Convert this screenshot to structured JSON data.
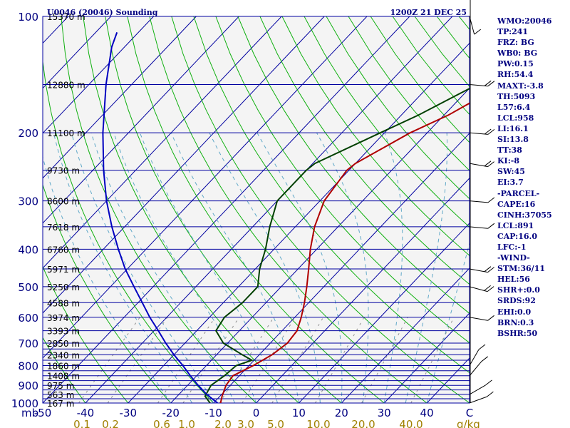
{
  "colors": {
    "isobar": "#0000a0",
    "isotherm": "#0000a0",
    "dry_adiabat": "#10b010",
    "moist_adiabat": "#60a8c8",
    "mixing_ratio": "#909090",
    "temperature": "#b00000",
    "dewpoint": "#004000",
    "parcel": "#0000c0",
    "title": "#000080",
    "axis_text": "#000080",
    "mixing_text": "#a08000"
  },
  "stats": [
    "WMO:20046",
    "TP:241",
    "FRZ: BG",
    "WB0: BG",
    "PW:0.15",
    "RH:54.4",
    "MAXT:-3.8",
    "TH:5093",
    "L57:6.4",
    "LCL:958",
    "LI:16.1",
    "SI:13.8",
    "TT:38",
    "KI:-8",
    "SW:45",
    "EI:3.7",
    "-PARCEL-",
    "CAPE:16",
    "CINH:37055",
    "LCL:891",
    "CAP:16.0",
    "LFC:-1",
    "-WIND-",
    "STM:36/11",
    "HEL:56",
    "SHR+:0.0",
    "SRDS:92",
    "EHI:0.0",
    "BRN:0.3",
    "BSHR:50"
  ],
  "chart_data": {
    "type": "line",
    "title": "U0046 (20046) Sounding",
    "time": "1200Z 21 DEC 25",
    "xlabel": "°C",
    "ylabel": "mb",
    "mixing_ratio_label": "g/kg",
    "xlim": [
      -50,
      50
    ],
    "pressure_range": [
      1000,
      100
    ],
    "x_ticks": [
      "-50",
      "-40",
      "-30",
      "-20",
      "-10",
      "0",
      "10",
      "20",
      "30",
      "40",
      "C"
    ],
    "y_ticks": [
      "100",
      "200",
      "300",
      "400",
      "500",
      "600",
      "700",
      "800",
      "900",
      "1000"
    ],
    "mixing_ratio_ticks": [
      "0.1",
      "0.2",
      "0.6",
      "1.0",
      "2.0",
      "3.0",
      "5.0",
      "10.0",
      "20.0",
      "40.0"
    ],
    "height_labels": [
      {
        "p": 100,
        "label": "15370 m"
      },
      {
        "p": 150,
        "label": "12880 m"
      },
      {
        "p": 200,
        "label": "11100 m"
      },
      {
        "p": 250,
        "label": "9730 m"
      },
      {
        "p": 300,
        "label": "8600 m"
      },
      {
        "p": 350,
        "label": "7618 m"
      },
      {
        "p": 400,
        "label": "6760 m"
      },
      {
        "p": 450,
        "label": "5971 m"
      },
      {
        "p": 500,
        "label": "5250 m"
      },
      {
        "p": 550,
        "label": "4588 m"
      },
      {
        "p": 600,
        "label": "3974 m"
      },
      {
        "p": 650,
        "label": "3393 m"
      },
      {
        "p": 700,
        "label": "2850 m"
      },
      {
        "p": 750,
        "label": "2340 m"
      },
      {
        "p": 800,
        "label": "1860 m"
      },
      {
        "p": 850,
        "label": "1408 m"
      },
      {
        "p": 900,
        "label": "975 m"
      },
      {
        "p": 950,
        "label": "563 m"
      },
      {
        "p": 1000,
        "label": "167 m"
      }
    ],
    "series": [
      {
        "name": "Temperature",
        "points": [
          {
            "p": 1012,
            "t": -8.0
          },
          {
            "p": 960,
            "t": -9.5
          },
          {
            "p": 900,
            "t": -11.0
          },
          {
            "p": 850,
            "t": -11.5
          },
          {
            "p": 800,
            "t": -9.0
          },
          {
            "p": 750,
            "t": -7.0
          },
          {
            "p": 700,
            "t": -6.0
          },
          {
            "p": 650,
            "t": -6.5
          },
          {
            "p": 600,
            "t": -8.5
          },
          {
            "p": 550,
            "t": -11.0
          },
          {
            "p": 500,
            "t": -14.0
          },
          {
            "p": 450,
            "t": -17.5
          },
          {
            "p": 400,
            "t": -21.5
          },
          {
            "p": 350,
            "t": -25.5
          },
          {
            "p": 300,
            "t": -29.0
          },
          {
            "p": 250,
            "t": -30.5
          },
          {
            "p": 240,
            "t": -30.0
          },
          {
            "p": 200,
            "t": -24.0
          },
          {
            "p": 180,
            "t": -19.0
          },
          {
            "p": 150,
            "t": -13.0
          },
          {
            "p": 120,
            "t": -5.0
          },
          {
            "p": 100,
            "t": 3.0
          }
        ]
      },
      {
        "name": "Dewpoint",
        "points": [
          {
            "p": 1012,
            "t": -10.0
          },
          {
            "p": 960,
            "t": -13.5
          },
          {
            "p": 900,
            "t": -14.5
          },
          {
            "p": 850,
            "t": -13.5
          },
          {
            "p": 800,
            "t": -13.0
          },
          {
            "p": 775,
            "t": -10.5
          },
          {
            "p": 750,
            "t": -14.0
          },
          {
            "p": 700,
            "t": -21.0
          },
          {
            "p": 650,
            "t": -25.5
          },
          {
            "p": 600,
            "t": -26.5
          },
          {
            "p": 550,
            "t": -25.5
          },
          {
            "p": 500,
            "t": -25.5
          },
          {
            "p": 450,
            "t": -29.0
          },
          {
            "p": 400,
            "t": -32.0
          },
          {
            "p": 350,
            "t": -36.0
          },
          {
            "p": 300,
            "t": -40.0
          },
          {
            "p": 250,
            "t": -40.0
          },
          {
            "p": 240,
            "t": -39.5
          },
          {
            "p": 200,
            "t": -31.0
          },
          {
            "p": 180,
            "t": -26.0
          },
          {
            "p": 150,
            "t": -19.0
          },
          {
            "p": 120,
            "t": -12.0
          },
          {
            "p": 100,
            "t": -7.0
          }
        ]
      },
      {
        "name": "Parcel",
        "points": [
          {
            "p": 1012,
            "t": -8.0
          },
          {
            "p": 950,
            "t": -13.5
          },
          {
            "p": 900,
            "t": -17.5
          },
          {
            "p": 850,
            "t": -21.5
          },
          {
            "p": 800,
            "t": -25.5
          },
          {
            "p": 750,
            "t": -30.0
          },
          {
            "p": 700,
            "t": -34.5
          },
          {
            "p": 650,
            "t": -39.0
          },
          {
            "p": 600,
            "t": -44.0
          },
          {
            "p": 550,
            "t": -49.0
          },
          {
            "p": 500,
            "t": -54.5
          },
          {
            "p": 450,
            "t": -60.5
          },
          {
            "p": 400,
            "t": -66.5
          },
          {
            "p": 350,
            "t": -73.0
          },
          {
            "p": 300,
            "t": -80.0
          },
          {
            "p": 250,
            "t": -87.5
          },
          {
            "p": 200,
            "t": -96.0
          },
          {
            "p": 150,
            "t": -106.0
          },
          {
            "p": 120,
            "t": -113.0
          },
          {
            "p": 110,
            "t": -115.0
          }
        ]
      }
    ],
    "winds": [
      {
        "p": 100,
        "dir": 195,
        "spd": 10
      },
      {
        "p": 150,
        "dir": 265,
        "spd": 15
      },
      {
        "p": 200,
        "dir": 265,
        "spd": 15
      },
      {
        "p": 240,
        "dir": 260,
        "spd": 15
      },
      {
        "p": 300,
        "dir": 265,
        "spd": 10
      },
      {
        "p": 350,
        "dir": 265,
        "spd": 10
      },
      {
        "p": 450,
        "dir": 260,
        "spd": 20
      },
      {
        "p": 500,
        "dir": 255,
        "spd": 20
      },
      {
        "p": 600,
        "dir": 260,
        "spd": 10
      },
      {
        "p": 800,
        "dir": 330,
        "spd": 10
      },
      {
        "p": 850,
        "dir": 320,
        "spd": 10
      },
      {
        "p": 950,
        "dir": 300,
        "spd": 10
      },
      {
        "p": 1000,
        "dir": 290,
        "spd": 10
      }
    ]
  }
}
